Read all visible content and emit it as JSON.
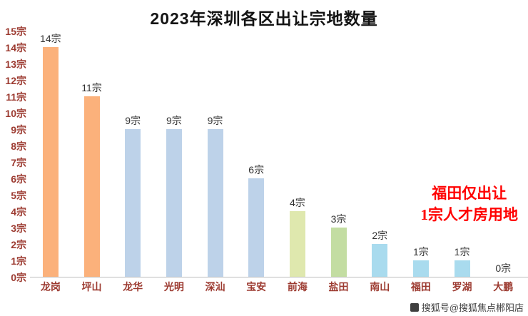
{
  "chart_data": {
    "type": "bar",
    "title": "2023年深圳各区出让宗地数量",
    "categories": [
      "龙岗",
      "坪山",
      "龙华",
      "光明",
      "深汕",
      "宝安",
      "前海",
      "盐田",
      "南山",
      "福田",
      "罗湖",
      "大鹏"
    ],
    "values": [
      14,
      11,
      9,
      9,
      9,
      6,
      4,
      3,
      2,
      1,
      1,
      0
    ],
    "bar_labels": [
      "14宗",
      "11宗",
      "9宗",
      "9宗",
      "9宗",
      "6宗",
      "4宗",
      "3宗",
      "2宗",
      "1宗",
      "1宗",
      "0宗"
    ],
    "bar_colors": [
      "#fbb17b",
      "#fbb17b",
      "#bdd2e9",
      "#bdd2e9",
      "#bdd2e9",
      "#bdd2e9",
      "#dfe8ae",
      "#c3dda2",
      "#a9dbee",
      "#a9dbee",
      "#a9dbee",
      "#a9dbee"
    ],
    "ylim": [
      0,
      15
    ],
    "yticks": [
      "15宗",
      "14宗",
      "13宗",
      "12宗",
      "11宗",
      "10宗",
      "9宗",
      "8宗",
      "7宗",
      "6宗",
      "5宗",
      "4宗",
      "3宗",
      "2宗",
      "1宗",
      "0宗"
    ],
    "grid": false,
    "legend": "none",
    "axis_label_color": "#9c3a30",
    "annotation": {
      "line1": "福田仅出让",
      "line2": "1宗人才房用地",
      "color": "#ff0000"
    }
  },
  "watermark": {
    "text": "搜狐号@搜狐焦点郴阳店"
  }
}
